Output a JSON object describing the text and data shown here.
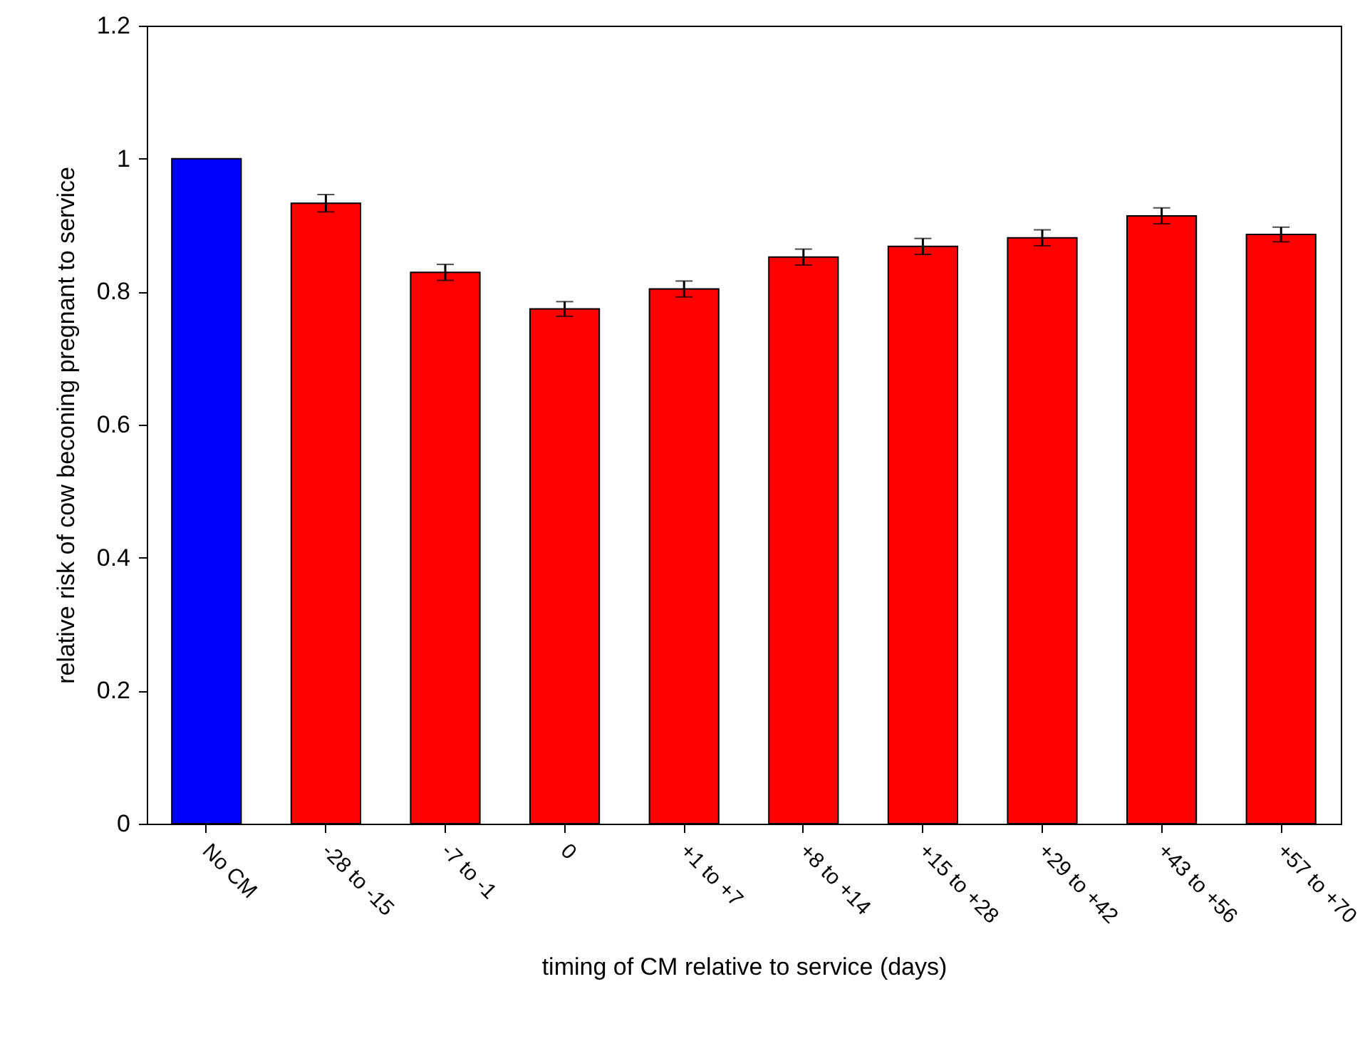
{
  "chart_data": {
    "type": "bar",
    "xlabel": "timing of CM relative to service (days)",
    "ylabel": "relative risk of cow beconing pregnant to service",
    "categories": [
      "No CM",
      "-28 to -15",
      "-7 to -1",
      "0",
      "+1 to +7",
      "+8 to +14",
      "+15 to +28",
      "+29 to +42",
      "+43 to +56",
      "+57 to +70"
    ],
    "values": [
      1,
      0.933,
      0.829,
      0.774,
      0.804,
      0.852,
      0.868,
      0.881,
      0.914,
      0.886
    ],
    "errors": [
      null,
      0.013,
      0.012,
      0.011,
      0.012,
      0.012,
      0.012,
      0.012,
      0.012,
      0.011
    ],
    "colors": [
      "#0000ff",
      "#ff0000",
      "#ff0000",
      "#ff0000",
      "#ff0000",
      "#ff0000",
      "#ff0000",
      "#ff0000",
      "#ff0000",
      "#ff0000"
    ],
    "ylim": [
      0,
      1.2
    ],
    "yticks": [
      0,
      0.2,
      0.4,
      0.6,
      0.8,
      1,
      1.2
    ],
    "grid": false
  }
}
